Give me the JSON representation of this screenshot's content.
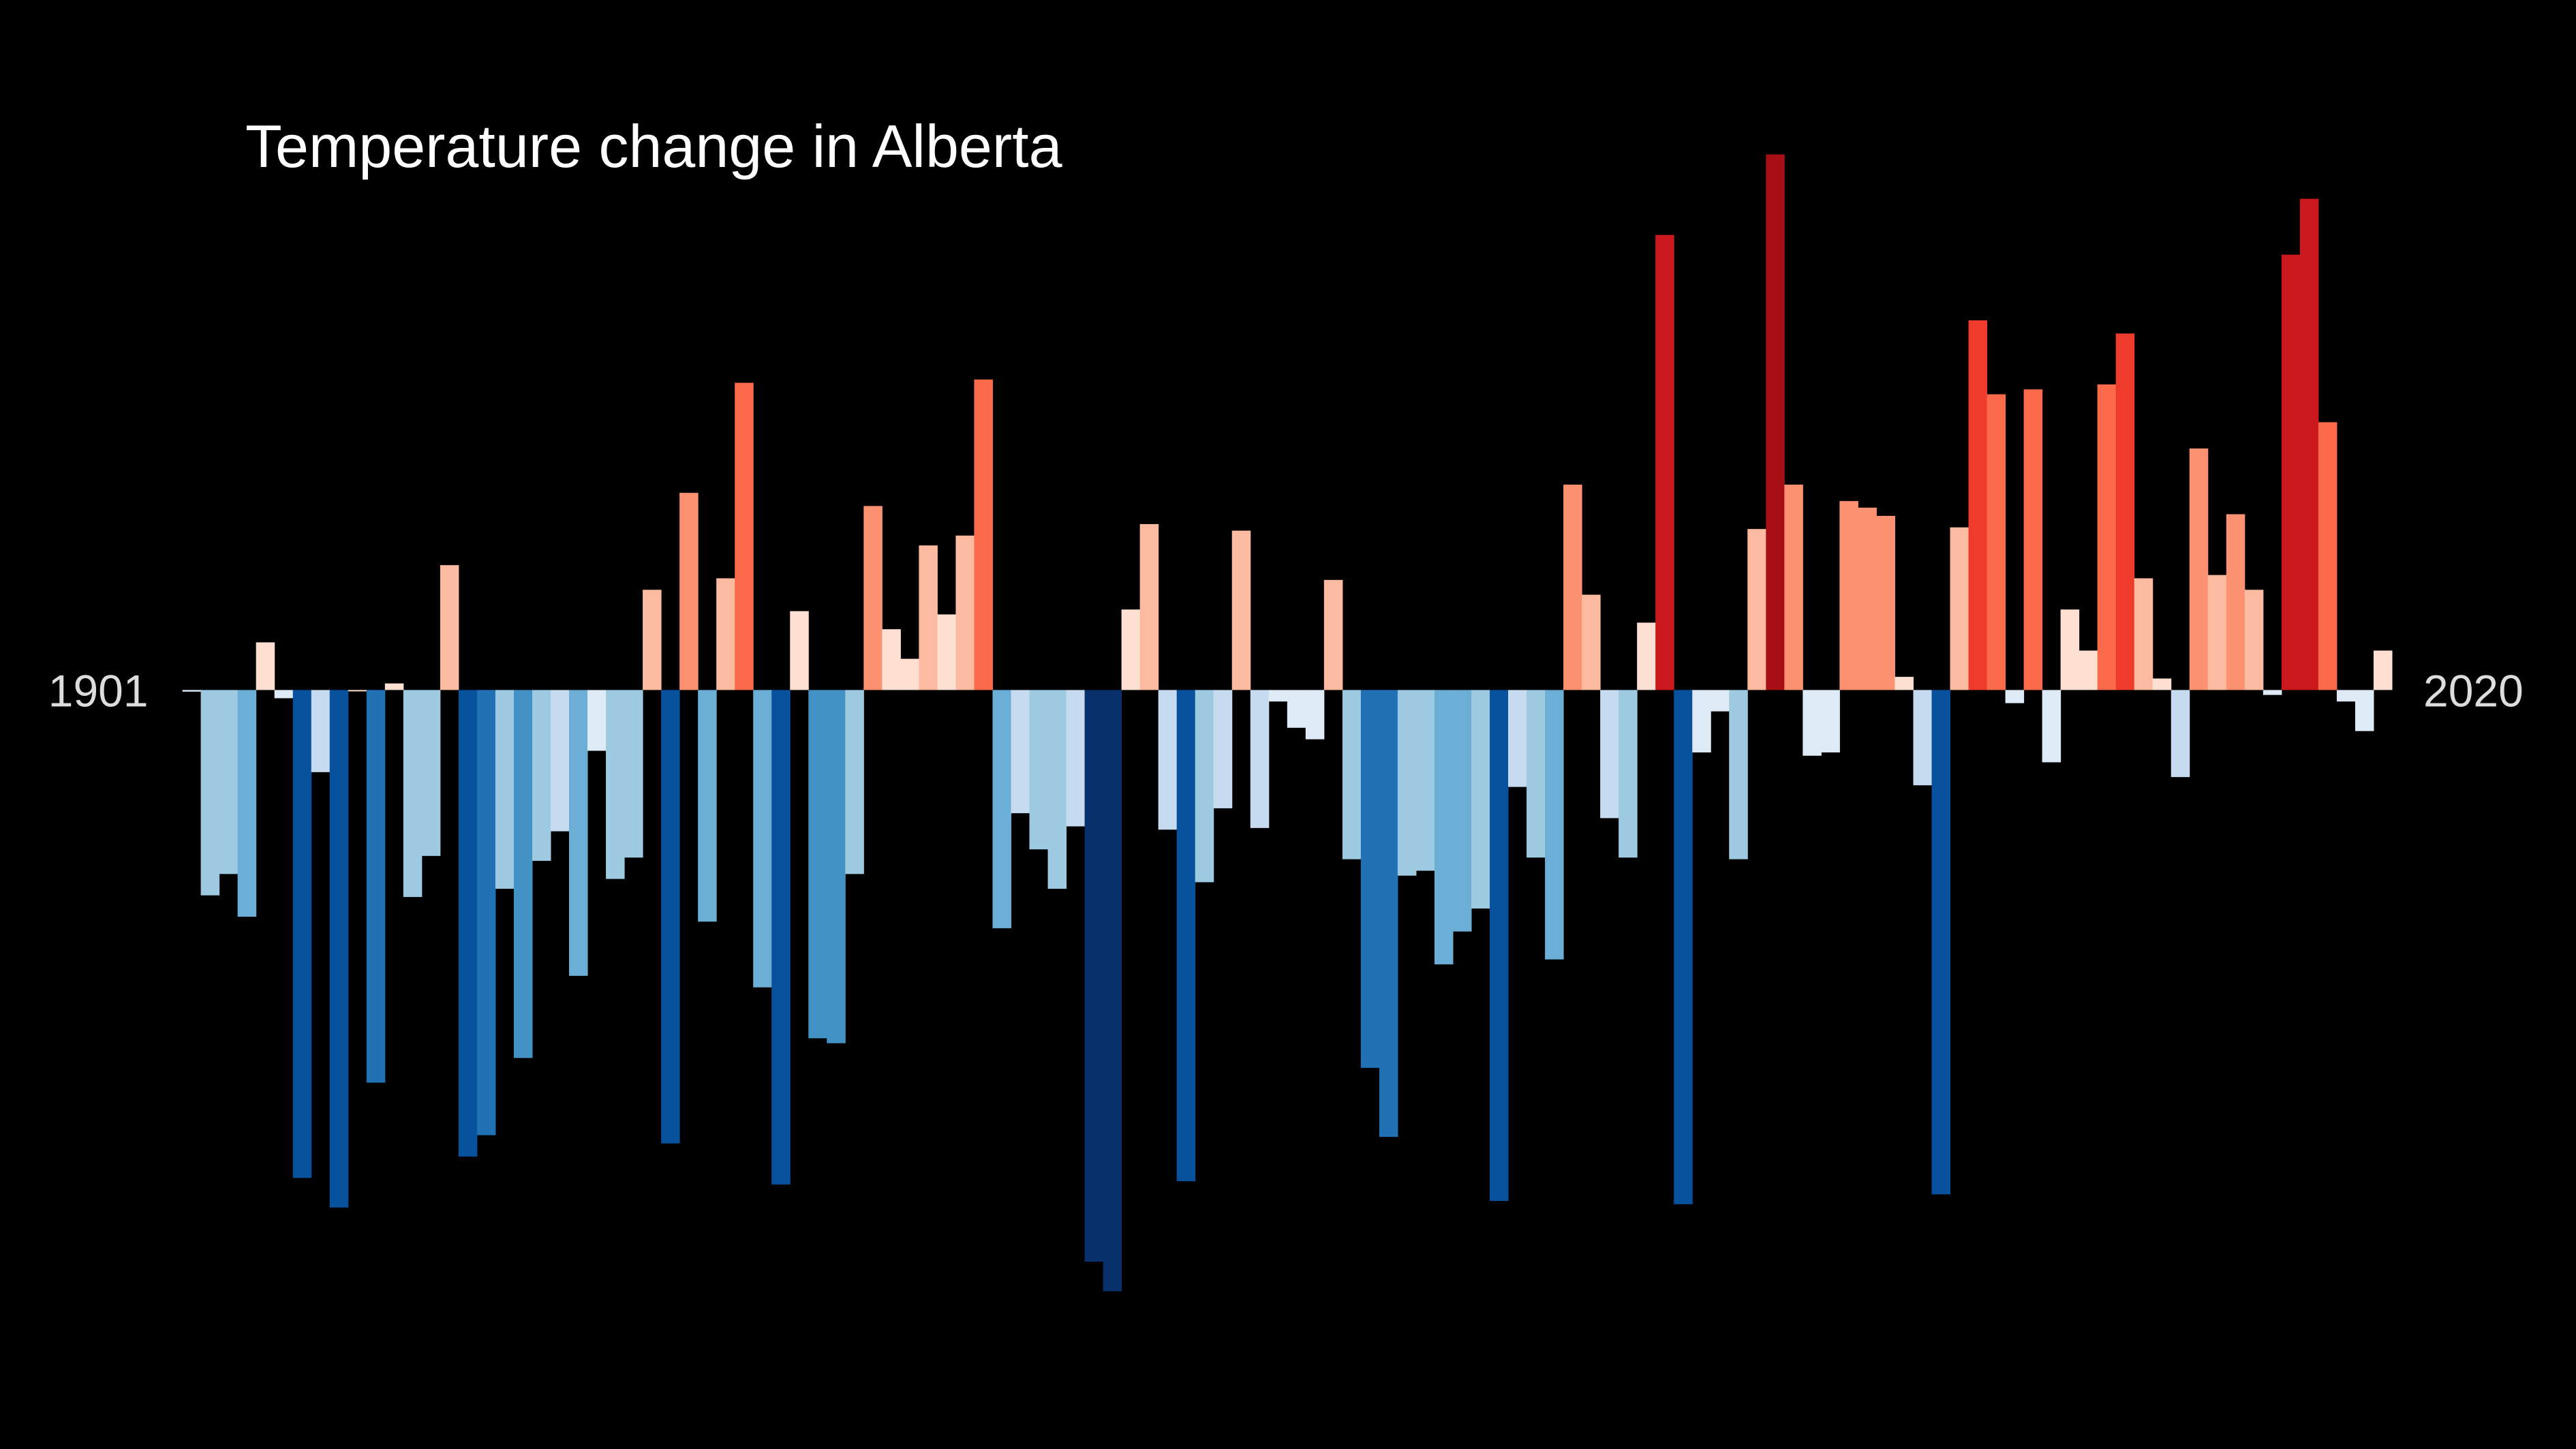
{
  "chart_data": {
    "type": "bar",
    "title": "Temperature change in Alberta",
    "categories": [
      "1901",
      null,
      null,
      null,
      null,
      null,
      null,
      null,
      null,
      null,
      null,
      null,
      null,
      null,
      null,
      null,
      null,
      null,
      null,
      null,
      null,
      null,
      null,
      null,
      null,
      null,
      null,
      null,
      null,
      null,
      null,
      null,
      null,
      null,
      null,
      null,
      null,
      null,
      null,
      null,
      null,
      null,
      null,
      null,
      null,
      null,
      null,
      null,
      null,
      null,
      null,
      null,
      null,
      null,
      null,
      null,
      null,
      null,
      null,
      null,
      null,
      null,
      null,
      null,
      null,
      null,
      null,
      null,
      null,
      null,
      null,
      null,
      null,
      null,
      null,
      null,
      null,
      null,
      null,
      null,
      null,
      null,
      null,
      null,
      null,
      null,
      null,
      null,
      null,
      null,
      null,
      null,
      null,
      null,
      null,
      null,
      null,
      null,
      null,
      null,
      null,
      null,
      null,
      null,
      null,
      null,
      null,
      null,
      null,
      null,
      null,
      null,
      null,
      null,
      null,
      null,
      null,
      null,
      null,
      "2020"
    ],
    "values": [
      -0.01,
      -1.25,
      -1.12,
      -1.38,
      0.29,
      -0.05,
      -2.97,
      -0.5,
      -3.15,
      0,
      -2.39,
      0.04,
      -1.26,
      -1.01,
      0.76,
      -2.84,
      -2.71,
      -1.21,
      -2.24,
      -1.04,
      -0.86,
      -1.74,
      -0.37,
      -1.15,
      -1.02,
      0.61,
      -2.76,
      1.2,
      -1.41,
      0.68,
      1.87,
      -1.81,
      -3.01,
      0.48,
      -2.12,
      -2.15,
      -1.12,
      1.12,
      0.37,
      0.19,
      0.88,
      0.46,
      0.94,
      1.89,
      -1.45,
      -0.75,
      -0.97,
      -1.21,
      -0.83,
      -3.48,
      -3.66,
      0.49,
      1.01,
      -0.85,
      -2.99,
      -1.17,
      -0.72,
      0.97,
      -0.84,
      -0.07,
      -0.23,
      -0.3,
      0.67,
      -1.03,
      -2.3,
      -2.72,
      -1.13,
      -1.1,
      -1.67,
      -1.47,
      -1.33,
      -3.11,
      -0.59,
      -1.02,
      -1.64,
      1.25,
      0.58,
      -0.78,
      -1.02,
      0.41,
      2.77,
      -3.13,
      -0.38,
      -0.13,
      -1.03,
      0.98,
      3.26,
      1.25,
      -0.4,
      -0.38,
      1.15,
      1.11,
      1.06,
      0.08,
      -0.58,
      -3.07,
      0.99,
      2.25,
      1.8,
      -0.08,
      1.83,
      -0.44,
      0.49,
      0.24,
      1.86,
      2.17,
      0.68,
      0.07,
      -0.53,
      1.47,
      0.7,
      1.07,
      0.61,
      -0.03,
      2.65,
      2.99,
      1.63,
      -0.07,
      -0.25,
      0.24
    ],
    "ylim": [
      -4.62,
      4.2
    ],
    "colormap": "RdBu_r",
    "background": "#000000"
  }
}
